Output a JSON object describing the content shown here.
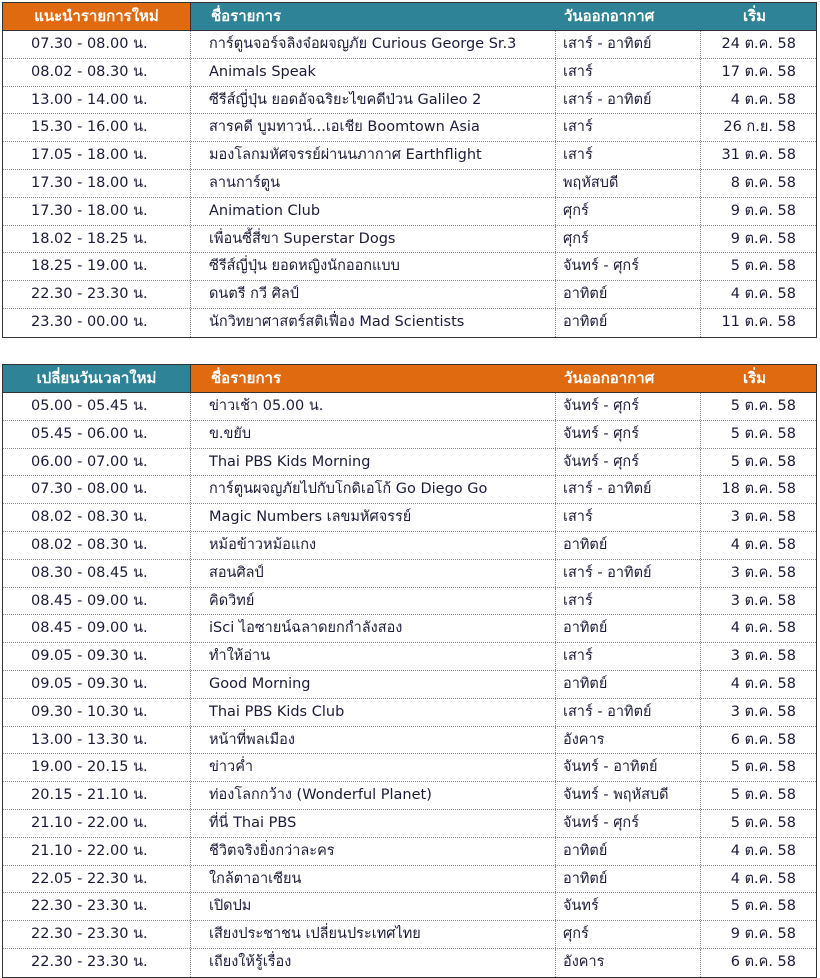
{
  "colors": {
    "orange": "#E06A10",
    "teal": "#2F8397"
  },
  "new_programs": {
    "headers": [
      "แนะนำรายการใหม่",
      "ชื่อรายการ",
      "วันออกอากาศ",
      "เริ่ม"
    ],
    "rows": [
      [
        "07.30 - 08.00  น.",
        "การ์ตูนจอร์จลิงจ๋อผจญภัย Curious George Sr.3",
        "เสาร์ - อาทิตย์",
        "24 ต.ค. 58"
      ],
      [
        "08.02 - 08.30  น.",
        "Animals Speak",
        "เสาร์",
        "17 ต.ค. 58"
      ],
      [
        "13.00 - 14.00  น.",
        "ซีรีส์ญี่ปุ่น ยอดอัจฉริยะไขคดีป่วน Galileo 2",
        "เสาร์ - อาทิตย์",
        "4 ต.ค. 58"
      ],
      [
        "15.30 - 16.00  น.",
        "สารคดี บูมทาวน์...เอเชีย Boomtown Asia",
        "เสาร์",
        "26 ก.ย. 58"
      ],
      [
        "17.05 - 18.00  น.",
        "มองโลกมหัศจรรย์ผ่านนภากาศ  Earthflight",
        "เสาร์",
        "31 ต.ค. 58"
      ],
      [
        "17.30 - 18.00  น.",
        "ลานการ์ตูน",
        "พฤหัสบดี",
        "8 ต.ค. 58"
      ],
      [
        "17.30 - 18.00  น.",
        "Animation Club",
        "ศุกร์",
        "9 ต.ค. 58"
      ],
      [
        "18.02 - 18.25  น.",
        "เพื่อนซี้สี่ขา Superstar Dogs",
        "ศุกร์",
        "9 ต.ค. 58"
      ],
      [
        "18.25 - 19.00  น.",
        "ซีรีส์ญี่ปุ่น ยอดหญิงนักออกแบบ",
        "จันทร์ - ศุกร์",
        "5 ต.ค. 58"
      ],
      [
        "22.30 - 23.30  น.",
        "ดนตรี กวี ศิลป์",
        "อาทิตย์",
        "4 ต.ค. 58"
      ],
      [
        "23.30 - 00.00  น.",
        "นักวิทยาศาสตร์สติเฟื่อง Mad Scientists",
        "อาทิตย์",
        "11 ต.ค. 58"
      ]
    ]
  },
  "rescheduled": {
    "headers": [
      "เปลี่ยนวันเวลาใหม่",
      "ชื่อรายการ",
      "วันออกอากาศ",
      "เริ่ม"
    ],
    "rows": [
      [
        "05.00 - 05.45  น.",
        "ข่าวเช้า 05.00 น.",
        "จันทร์ - ศุกร์",
        "5 ต.ค. 58"
      ],
      [
        "05.45 - 06.00  น.",
        "ข.ขยับ",
        "จันทร์ - ศุกร์",
        "5 ต.ค. 58"
      ],
      [
        "06.00 - 07.00  น.",
        "Thai PBS Kids Morning",
        "จันทร์ - ศุกร์",
        "5 ต.ค. 58"
      ],
      [
        "07.30 - 08.00  น.",
        "การ์ตูนผจญภัยไปกับโกดิเอโก้ Go Diego Go",
        "เสาร์ - อาทิตย์",
        "18 ต.ค. 58"
      ],
      [
        "08.02 - 08.30  น.",
        "Magic Numbers เลขมหัศจรรย์",
        "เสาร์",
        "3 ต.ค. 58"
      ],
      [
        "08.02 - 08.30  น.",
        "หม้อข้าวหม้อแกง",
        "อาทิตย์",
        "4 ต.ค. 58"
      ],
      [
        "08.30 - 08.45  น.",
        "สอนศิลป์",
        "เสาร์ - อาทิตย์",
        "3 ต.ค. 58"
      ],
      [
        "08.45 - 09.00  น.",
        "คิดวิทย์",
        "เสาร์",
        "3 ต.ค. 58"
      ],
      [
        "08.45 - 09.00  น.",
        "iSci ไอซายน์ฉลาดยกกำลังสอง",
        "อาทิตย์",
        "4 ต.ค. 58"
      ],
      [
        "09.05 - 09.30  น.",
        "ทำให้อ่าน",
        "เสาร์",
        "3 ต.ค. 58"
      ],
      [
        "09.05 - 09.30  น.",
        "Good Morning",
        "อาทิตย์",
        "4 ต.ค. 58"
      ],
      [
        "09.30 - 10.30  น.",
        "Thai PBS Kids Club",
        "เสาร์ - อาทิตย์",
        "3 ต.ค. 58"
      ],
      [
        "13.00 - 13.30  น.",
        "หน้าที่พลเมือง",
        "อังคาร",
        "6 ต.ค. 58"
      ],
      [
        "19.00 - 20.15  น.",
        "ข่าวค่ำ",
        "จันทร์ - อาทิตย์",
        "5 ต.ค. 58"
      ],
      [
        "20.15 - 21.10  น.",
        "ท่องโลกกว้าง (Wonderful Planet)",
        "จันทร์ - พฤหัสบดี",
        "5 ต.ค. 58"
      ],
      [
        "21.10 - 22.00  น.",
        "ที่นี่ Thai PBS",
        "จันทร์ - ศุกร์",
        "5 ต.ค. 58"
      ],
      [
        "21.10 - 22.00  น.",
        "ชีวิตจริงยิ่งกว่าละคร",
        "อาทิตย์",
        "4 ต.ค. 58"
      ],
      [
        "22.05 - 22.30  น.",
        "ใกล้ตาอาเซียน",
        "อาทิตย์",
        "4 ต.ค. 58"
      ],
      [
        "22.30 - 23.30  น.",
        "เปิดปม",
        "จันทร์",
        "5 ต.ค. 58"
      ],
      [
        "22.30 - 23.30  น.",
        "เสียงประชาชน เปลี่ยนประเทศไทย",
        "ศุกร์",
        "9 ต.ค. 58"
      ],
      [
        "22.30 - 23.30  น.",
        "เถียงให้รู้เรื่อง",
        "อังคาร",
        "6 ต.ค. 58"
      ]
    ]
  }
}
